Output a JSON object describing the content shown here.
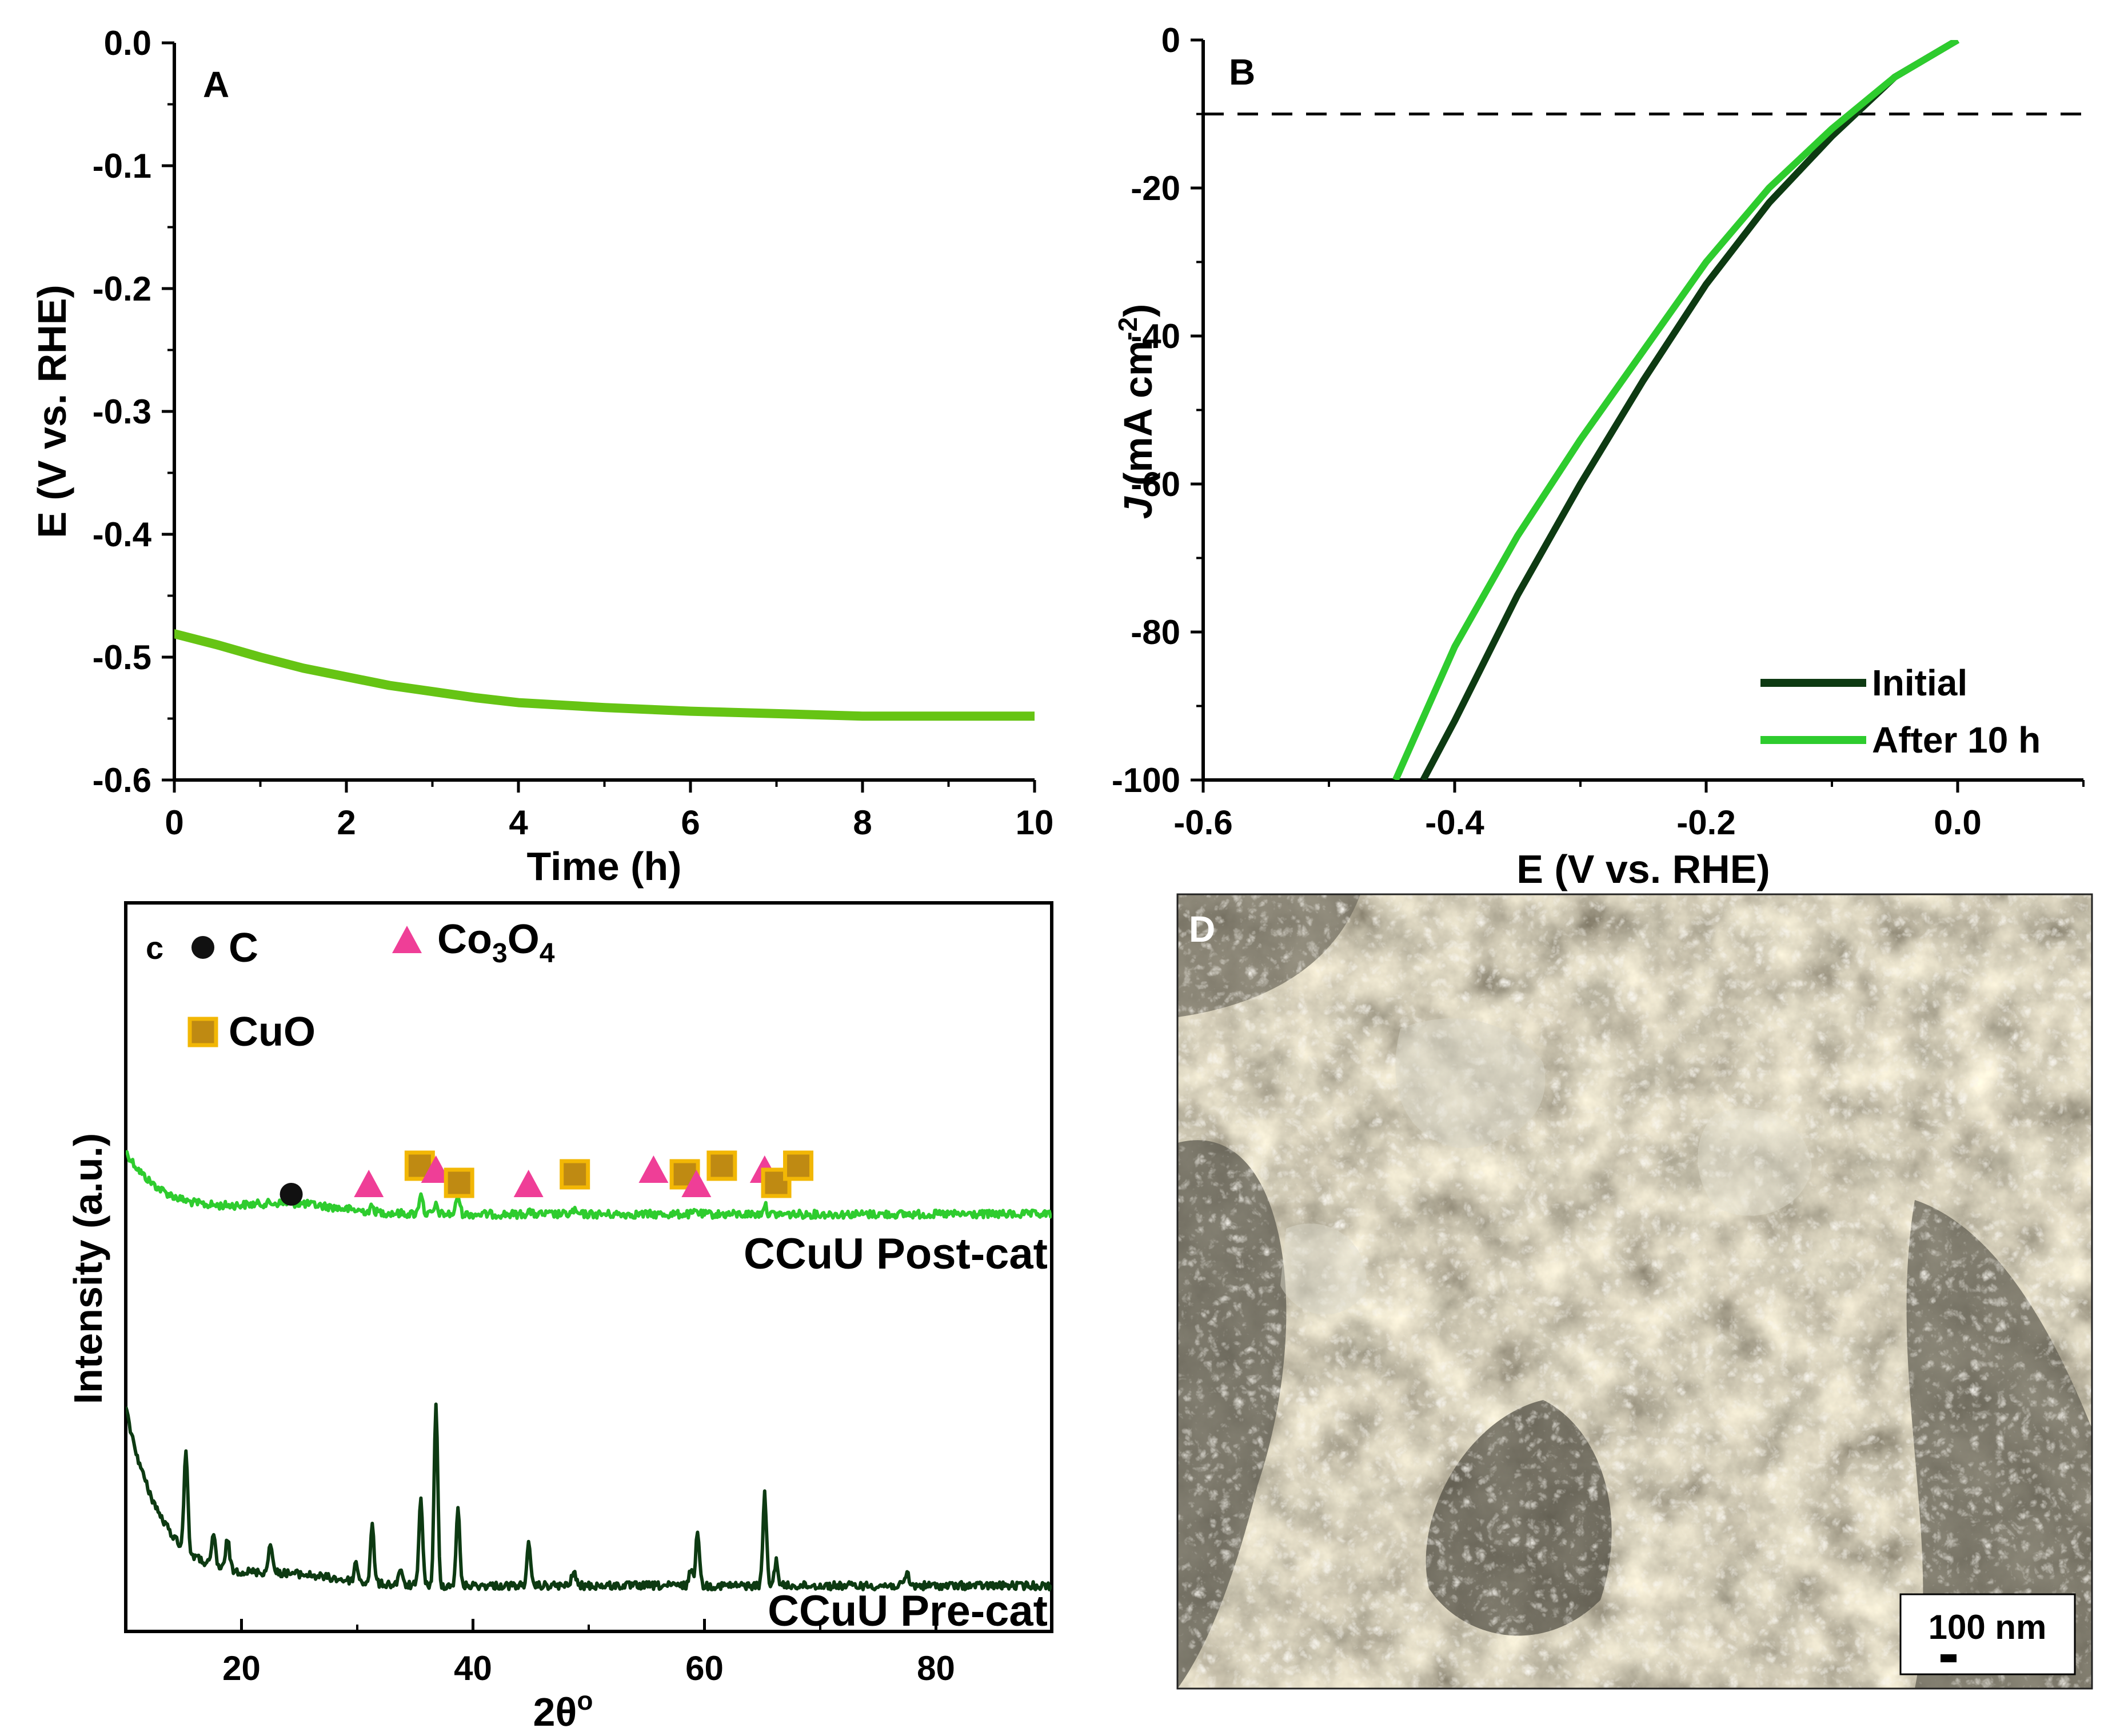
{
  "colors": {
    "accent_green": "#2ecc2e",
    "dark_green": "#0d3a12",
    "panel_a_line": "#66c414",
    "triangle": "#ef3e97",
    "square_fill": "#bf8a12",
    "square_edge": "#f2b705"
  },
  "chart_data": [
    {
      "panel": "A",
      "type": "line",
      "xlabel": "Time (h)",
      "ylabel": "E (V vs. RHE)",
      "xlim": [
        0,
        10
      ],
      "ylim": [
        -0.6,
        0.0
      ],
      "xticks": [
        0,
        2,
        4,
        6,
        8,
        10
      ],
      "yticks": [
        0.0,
        -0.1,
        -0.2,
        -0.3,
        -0.4,
        -0.5,
        -0.6
      ],
      "ytick_labels": [
        "0.0",
        "-0.1",
        "-0.2",
        "-0.3",
        "-0.4",
        "-0.5",
        "-0.6"
      ],
      "grid": false,
      "series": [
        {
          "color": "#66c414",
          "x": [
            0,
            0.5,
            1,
            1.5,
            2,
            2.5,
            3,
            3.5,
            4,
            5,
            6,
            7,
            8,
            9,
            10
          ],
          "y": [
            -0.481,
            -0.49,
            -0.5,
            -0.509,
            -0.516,
            -0.523,
            -0.528,
            -0.533,
            -0.537,
            -0.541,
            -0.544,
            -0.546,
            -0.548,
            -0.548,
            -0.548
          ]
        }
      ]
    },
    {
      "panel": "B",
      "type": "line",
      "xlabel": "E (V  vs. RHE)",
      "ylabel_prefix": "J",
      "ylabel_main": " (mA cm",
      "ylabel_sup": "-2",
      "ylabel_suffix": ")",
      "xlim": [
        -0.6,
        0.1
      ],
      "ylim": [
        -100,
        0
      ],
      "xticks": [
        -0.6,
        -0.4,
        -0.2,
        0.0
      ],
      "xtick_labels": [
        "-0.6",
        "-0.4",
        "-0.2",
        "0.0"
      ],
      "yticks": [
        0,
        -20,
        -40,
        -60,
        -80,
        -100
      ],
      "ytick_labels": [
        "0",
        "-20",
        "-40",
        "-60",
        "-80",
        "-100"
      ],
      "reference_line_y": -10,
      "legend_position": "bottom-right",
      "series": [
        {
          "name": "Initial",
          "color": "#0d3a12",
          "x": [
            0.0,
            -0.05,
            -0.1,
            -0.15,
            -0.2,
            -0.25,
            -0.3,
            -0.35,
            -0.4,
            -0.425
          ],
          "y": [
            0,
            -5,
            -13,
            -22,
            -33,
            -46,
            -60,
            -75,
            -92,
            -100
          ]
        },
        {
          "name": "After 10 h",
          "color": "#2ecc2e",
          "x": [
            0.0,
            -0.05,
            -0.1,
            -0.15,
            -0.2,
            -0.25,
            -0.3,
            -0.35,
            -0.4,
            -0.447
          ],
          "y": [
            0,
            -5,
            -12,
            -20,
            -30,
            -42,
            -54,
            -67,
            -82,
            -100
          ]
        }
      ]
    },
    {
      "panel": "C",
      "type": "line",
      "xlabel_main": "2θ",
      "xlabel_sup": "o",
      "ylabel": "Intensity (a.u.)",
      "xlim": [
        10,
        90
      ],
      "xticks": [
        20,
        40,
        60,
        80
      ],
      "legend": [
        {
          "label": "C",
          "marker": "circle"
        },
        {
          "label_main": "Co",
          "sub1": "3",
          "mid": "O",
          "sub2": "4",
          "marker": "triangle"
        },
        {
          "label": "CuO",
          "marker": "square"
        }
      ],
      "panel_prefix": "c",
      "series": [
        {
          "name": "CCuU Post-cat",
          "color": "#2ecc2e",
          "peaks": [
            [
              31.3,
              0.2
            ],
            [
              35.5,
              0.9
            ],
            [
              36.8,
              0.35
            ],
            [
              38.7,
              0.8
            ],
            [
              44.8,
              0.15
            ],
            [
              48.7,
              0.15
            ],
            [
              59.3,
              0.15
            ],
            [
              65.2,
              0.4
            ]
          ]
        },
        {
          "name": "CCuU Pre-cat",
          "color": "#0d3a12",
          "peaks": [
            [
              15.2,
              3.2
            ],
            [
              17.6,
              1.0
            ],
            [
              18.8,
              1.0
            ],
            [
              22.5,
              1.0
            ],
            [
              29.9,
              0.6
            ],
            [
              31.3,
              1.8
            ],
            [
              33.7,
              0.5
            ],
            [
              35.5,
              2.8
            ],
            [
              36.8,
              5.7
            ],
            [
              38.7,
              2.4
            ],
            [
              44.8,
              1.3
            ],
            [
              48.7,
              0.5
            ],
            [
              58.8,
              0.5
            ],
            [
              59.4,
              1.8
            ],
            [
              65.2,
              2.9
            ],
            [
              66.2,
              0.8
            ],
            [
              77.5,
              0.4
            ]
          ]
        }
      ],
      "phase_markers": [
        {
          "phase": "C",
          "marker": "circle",
          "x": 24.3
        },
        {
          "phase": "Co3O4",
          "marker": "triangle",
          "x": 31.0
        },
        {
          "phase": "CuO",
          "marker": "square",
          "x": 35.4
        },
        {
          "phase": "Co3O4",
          "marker": "triangle",
          "x": 36.8
        },
        {
          "phase": "CuO",
          "marker": "square",
          "x": 38.8
        },
        {
          "phase": "Co3O4",
          "marker": "triangle",
          "x": 44.8
        },
        {
          "phase": "CuO",
          "marker": "square",
          "x": 48.8
        },
        {
          "phase": "Co3O4",
          "marker": "triangle",
          "x": 55.6
        },
        {
          "phase": "CuO",
          "marker": "square",
          "x": 58.3
        },
        {
          "phase": "Co3O4",
          "marker": "triangle",
          "x": 59.3
        },
        {
          "phase": "CuO",
          "marker": "square",
          "x": 61.5
        },
        {
          "phase": "Co3O4",
          "marker": "triangle",
          "x": 65.2
        },
        {
          "phase": "CuO",
          "marker": "square",
          "x": 66.2
        },
        {
          "phase": "CuO",
          "marker": "square",
          "x": 68.1
        }
      ]
    }
  ],
  "panel_d": {
    "label": "D",
    "scale_bar": "100 nm"
  }
}
